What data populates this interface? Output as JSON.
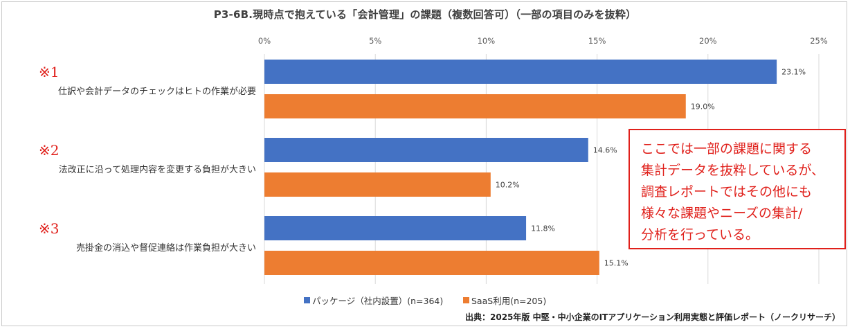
{
  "chart_data": {
    "type": "bar",
    "orientation": "horizontal",
    "title": "P3-6B.現時点で抱えている「会計管理」の課題（複数回答可）（一部の項目のみを抜粋）",
    "categories": [
      {
        "mark": "※1",
        "label": "仕訳や会計データのチェックはヒトの作業が必要"
      },
      {
        "mark": "※2",
        "label": "法改正に沿って処理内容を変更する負担が大きい"
      },
      {
        "mark": "※3",
        "label": "売掛金の消込や督促連絡は作業負担が大きい"
      }
    ],
    "series": [
      {
        "name": "パッケージ（社内設置）(n=364)",
        "color": "#4472c4",
        "values": [
          23.1,
          14.6,
          11.8
        ],
        "labels": [
          "23.1%",
          "14.6%",
          "11.8%"
        ]
      },
      {
        "name": "SaaS利用(n=205)",
        "color": "#ed7d31",
        "values": [
          19.0,
          10.2,
          15.1
        ],
        "labels": [
          "19.0%",
          "10.2%",
          "15.1%"
        ]
      }
    ],
    "xlim": [
      0,
      25
    ],
    "ticks": [
      {
        "value": 0,
        "label": "0%"
      },
      {
        "value": 5,
        "label": "5%"
      },
      {
        "value": 10,
        "label": "10%"
      },
      {
        "value": 15,
        "label": "15%"
      },
      {
        "value": 20,
        "label": "20%"
      },
      {
        "value": 25,
        "label": "25%"
      }
    ],
    "grid": true,
    "legend_position": "bottom"
  },
  "callout": {
    "lines": [
      "ここでは一部の課題に関する",
      "集計データを抜粋しているが、",
      "調査レポートではその他にも",
      "様々な課題やニーズの集計/",
      "分析を行っている。"
    ]
  },
  "source": "出典：2025年版 中堅・中小企業のITアプリケーション利用実態と評価レポート（ノークリサーチ）",
  "colors": {
    "accent_red": "#e0201b",
    "grid": "#d9d9d9"
  }
}
